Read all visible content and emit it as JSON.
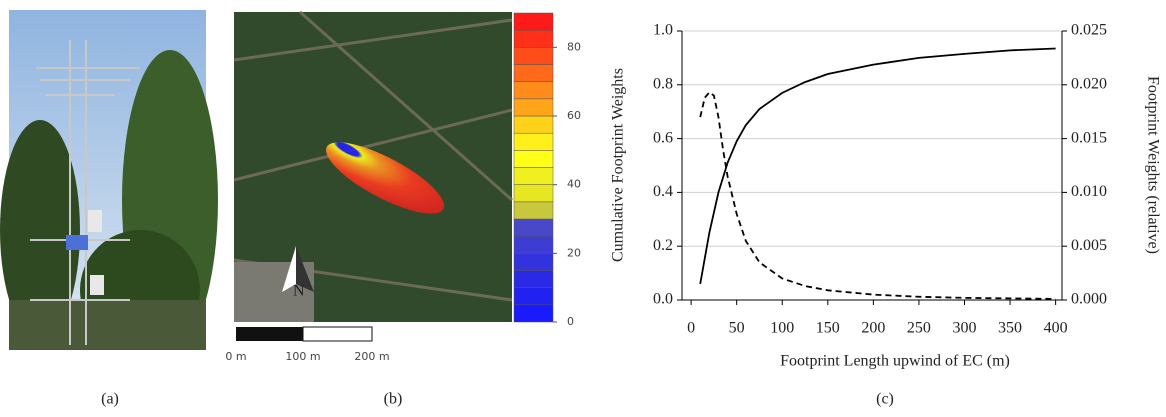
{
  "chart_data": {
    "type": "line",
    "x_label": "Footprint Length upwind of EC (m)",
    "y_label": "Cumulative Footprint Weights",
    "y2_label": "Footprint Weights (relative)",
    "xlim": [
      -10,
      407
    ],
    "xticks": [
      0,
      50,
      100,
      150,
      200,
      250,
      300,
      350,
      400
    ],
    "ylim": [
      0,
      1
    ],
    "yticks": [
      {
        "value": 0,
        "label": "0.0"
      },
      {
        "value": 0.2,
        "label": "0.2"
      },
      {
        "value": 0.4,
        "label": "0.4"
      },
      {
        "value": 0.6,
        "label": "0.6"
      },
      {
        "value": 0.8,
        "label": "0.8"
      },
      {
        "value": 1,
        "label": "1.0"
      }
    ],
    "y2lim": [
      0,
      0.025
    ],
    "y2ticks": [
      {
        "value": 0,
        "label": "0.000"
      },
      {
        "value": 0.005,
        "label": "0.005"
      },
      {
        "value": 0.01,
        "label": "0.010"
      },
      {
        "value": 0.015,
        "label": "0.015"
      },
      {
        "value": 0.02,
        "label": "0.020"
      },
      {
        "value": 0.025,
        "label": "0.025"
      }
    ],
    "grid": true,
    "series": [
      {
        "color": "#000000",
        "dashed": false,
        "x": [
          10,
          20,
          30,
          40,
          50,
          60,
          75,
          100,
          125,
          150,
          200,
          250,
          300,
          350,
          400
        ],
        "values": [
          0.06,
          0.25,
          0.4,
          0.51,
          0.59,
          0.65,
          0.71,
          0.77,
          0.81,
          0.84,
          0.875,
          0.9,
          0.915,
          0.928,
          0.935
        ]
      },
      {
        "color": "#000000",
        "dashed": true,
        "axis": "y2",
        "x": [
          10,
          15,
          20,
          25,
          30,
          35,
          40,
          50,
          60,
          75,
          100,
          125,
          150,
          200,
          250,
          300,
          400
        ],
        "values": [
          0.017,
          0.0188,
          0.0193,
          0.019,
          0.017,
          0.014,
          0.0115,
          0.008,
          0.0055,
          0.0035,
          0.002,
          0.0013,
          0.0009,
          0.0005,
          0.0003,
          0.0002,
          0.0001
        ]
      }
    ]
  },
  "colorbar": {
    "lim": [
      0,
      90
    ],
    "ticks": [
      0,
      20,
      40,
      60,
      80
    ],
    "colors": [
      "#1a1aff",
      "#2222f0",
      "#2a2ae6",
      "#3333dd",
      "#3d3dd4",
      "#4848c8",
      "#c8c83c",
      "#e6e622",
      "#f0f020",
      "#ffff1a",
      "#fff01a",
      "#ffd21a",
      "#ffa51a",
      "#ff8c1a",
      "#ff6a1a",
      "#ff4d1a",
      "#ff301a",
      "#ff1a1a"
    ]
  },
  "scale_bar": {
    "labels": [
      "0 m",
      "100 m",
      "200 m"
    ]
  },
  "compass": "N",
  "panel_labels": [
    "(a)",
    "(b)",
    "(c)"
  ]
}
